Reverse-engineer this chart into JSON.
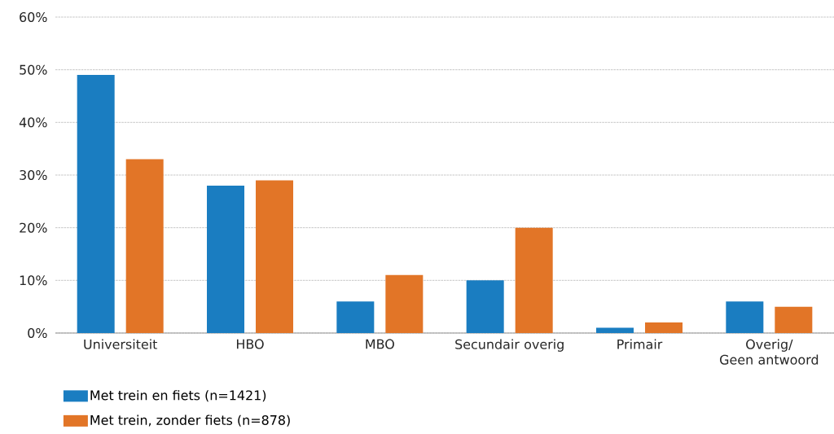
{
  "chart_data": {
    "type": "bar",
    "categories": [
      "Universiteit",
      "HBO",
      "MBO",
      "Secundair overig",
      "Primair",
      "Overig/\nGeen antwoord"
    ],
    "series": [
      {
        "name": "Met trein en fiets (n=1421)",
        "color": "#1a7dc1",
        "values": [
          49,
          28,
          6,
          10,
          1,
          6
        ]
      },
      {
        "name": "Met trein, zonder fiets (n=878)",
        "color": "#e27527",
        "values": [
          33,
          29,
          11,
          20,
          2,
          5
        ]
      }
    ],
    "ylim": [
      0,
      60
    ],
    "yticks": [
      {
        "value": 0,
        "label": "0%"
      },
      {
        "value": 10,
        "label": "10%"
      },
      {
        "value": 20,
        "label": "20%"
      },
      {
        "value": 30,
        "label": "30%"
      },
      {
        "value": 40,
        "label": "40%"
      },
      {
        "value": 50,
        "label": "50%"
      },
      {
        "value": 60,
        "label": "60%"
      }
    ],
    "grid": "y",
    "legend": "bottom left"
  }
}
